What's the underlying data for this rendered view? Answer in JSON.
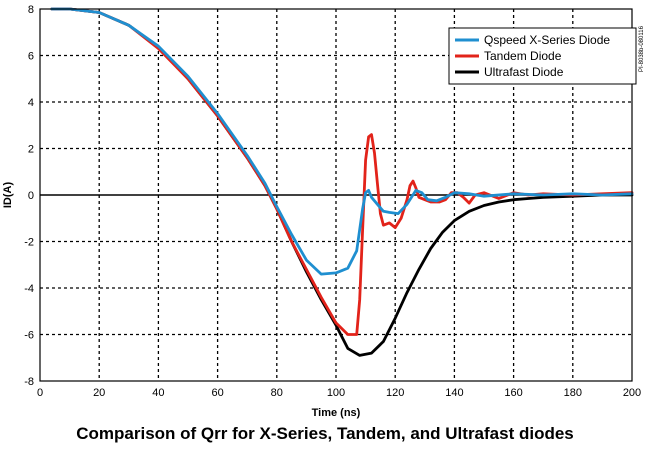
{
  "caption": "Comparison of Qrr for X-Series, Tandem, and Ultrafast diodes",
  "side_note": "PI-8038b-080116",
  "chart_data": {
    "type": "line",
    "title": "",
    "xlabel": "Time (ns)",
    "ylabel": "ID(A)",
    "xlim": [
      0,
      200
    ],
    "ylim": [
      -8,
      8
    ],
    "x_ticks": [
      0,
      20,
      40,
      60,
      80,
      100,
      120,
      140,
      160,
      180,
      200
    ],
    "y_ticks": [
      -8,
      -6,
      -4,
      -2,
      0,
      2,
      4,
      6,
      8
    ],
    "grid": true,
    "grid_style": "dashed",
    "legend_position": "top-right",
    "series": [
      {
        "name": "Qspeed X-Series Diode",
        "color": "#1f8fd0",
        "points": [
          [
            4,
            8
          ],
          [
            10,
            8
          ],
          [
            20,
            7.85
          ],
          [
            30,
            7.3
          ],
          [
            40,
            6.4
          ],
          [
            50,
            5.1
          ],
          [
            60,
            3.5
          ],
          [
            70,
            1.7
          ],
          [
            76,
            0.5
          ],
          [
            80,
            -0.5
          ],
          [
            85,
            -1.7
          ],
          [
            90,
            -2.8
          ],
          [
            95,
            -3.4
          ],
          [
            100,
            -3.35
          ],
          [
            104,
            -3.15
          ],
          [
            107,
            -2.4
          ],
          [
            109,
            -0.6
          ],
          [
            110,
            0.1
          ],
          [
            111,
            0.2
          ],
          [
            112,
            -0.1
          ],
          [
            114,
            -0.4
          ],
          [
            116,
            -0.7
          ],
          [
            118,
            -0.75
          ],
          [
            121,
            -0.8
          ],
          [
            124,
            -0.4
          ],
          [
            127,
            0.2
          ],
          [
            129,
            0.1
          ],
          [
            131,
            -0.2
          ],
          [
            134,
            -0.25
          ],
          [
            137,
            -0.1
          ],
          [
            140,
            0.1
          ],
          [
            145,
            0.05
          ],
          [
            150,
            -0.05
          ],
          [
            160,
            0.05
          ],
          [
            170,
            0
          ],
          [
            180,
            0.05
          ],
          [
            190,
            0
          ],
          [
            200,
            0.05
          ]
        ]
      },
      {
        "name": "Tandem Diode",
        "color": "#e2231a",
        "points": [
          [
            4,
            8
          ],
          [
            10,
            8
          ],
          [
            20,
            7.85
          ],
          [
            30,
            7.3
          ],
          [
            40,
            6.3
          ],
          [
            50,
            5
          ],
          [
            60,
            3.4
          ],
          [
            70,
            1.6
          ],
          [
            76,
            0.4
          ],
          [
            80,
            -0.6
          ],
          [
            85,
            -2
          ],
          [
            90,
            -3.2
          ],
          [
            95,
            -4.4
          ],
          [
            100,
            -5.5
          ],
          [
            104,
            -6
          ],
          [
            107,
            -6
          ],
          [
            108,
            -4.5
          ],
          [
            109,
            -1.5
          ],
          [
            110,
            1.5
          ],
          [
            111,
            2.5
          ],
          [
            112,
            2.6
          ],
          [
            113,
            1.8
          ],
          [
            114,
            0.5
          ],
          [
            115,
            -0.8
          ],
          [
            116,
            -1.3
          ],
          [
            118,
            -1.2
          ],
          [
            120,
            -1.4
          ],
          [
            122,
            -1
          ],
          [
            124,
            -0.2
          ],
          [
            125,
            0.4
          ],
          [
            126,
            0.6
          ],
          [
            127,
            0.3
          ],
          [
            128,
            -0.1
          ],
          [
            130,
            -0.2
          ],
          [
            132,
            -0.3
          ],
          [
            135,
            -0.3
          ],
          [
            137,
            -0.2
          ],
          [
            139,
            0.1
          ],
          [
            141,
            0.1
          ],
          [
            143,
            -0.1
          ],
          [
            145,
            -0.35
          ],
          [
            147,
            0
          ],
          [
            150,
            0.1
          ],
          [
            155,
            -0.15
          ],
          [
            160,
            0.1
          ],
          [
            165,
            0
          ],
          [
            170,
            0.05
          ],
          [
            180,
            0
          ],
          [
            190,
            0.05
          ],
          [
            200,
            0.1
          ]
        ]
      },
      {
        "name": "Ultrafast Diode",
        "color": "#000000",
        "points": [
          [
            4,
            8
          ],
          [
            10,
            8
          ],
          [
            20,
            7.85
          ],
          [
            30,
            7.3
          ],
          [
            40,
            6.35
          ],
          [
            50,
            5
          ],
          [
            60,
            3.4
          ],
          [
            70,
            1.6
          ],
          [
            76,
            0.4
          ],
          [
            80,
            -0.6
          ],
          [
            85,
            -2
          ],
          [
            90,
            -3.3
          ],
          [
            95,
            -4.5
          ],
          [
            100,
            -5.6
          ],
          [
            104,
            -6.6
          ],
          [
            108,
            -6.9
          ],
          [
            112,
            -6.8
          ],
          [
            116,
            -6.3
          ],
          [
            120,
            -5.3
          ],
          [
            124,
            -4.2
          ],
          [
            128,
            -3.2
          ],
          [
            132,
            -2.3
          ],
          [
            136,
            -1.6
          ],
          [
            140,
            -1.1
          ],
          [
            145,
            -0.7
          ],
          [
            150,
            -0.45
          ],
          [
            155,
            -0.3
          ],
          [
            160,
            -0.2
          ],
          [
            165,
            -0.15
          ],
          [
            170,
            -0.1
          ],
          [
            180,
            -0.05
          ],
          [
            190,
            0
          ],
          [
            200,
            0
          ]
        ]
      }
    ]
  }
}
